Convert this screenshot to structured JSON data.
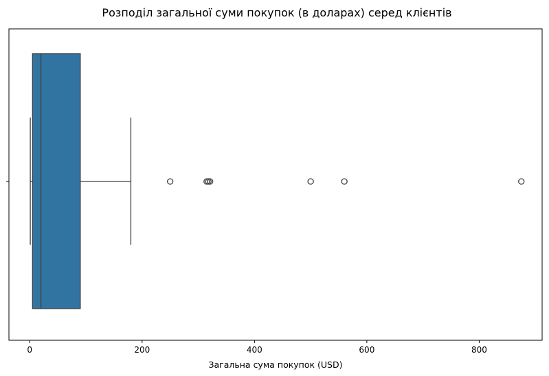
{
  "chart_data": {
    "type": "boxplot",
    "orientation": "horizontal",
    "title": "Розподіл загальної суми покупок (в доларах) серед клієнтів",
    "xlabel": "Загальна сума покупок (USD)",
    "ylabel": "",
    "xlim": [
      -37,
      912
    ],
    "xticks": [
      0,
      200,
      400,
      600,
      800
    ],
    "box": {
      "whisker_low": 1,
      "q1": 5,
      "median": 20,
      "q3": 90,
      "whisker_high": 180,
      "fliers": [
        250,
        315,
        318,
        321,
        500,
        560,
        875
      ]
    },
    "colors": {
      "box_fill": "#3274a1",
      "line": "#3f3f3f"
    },
    "grid": false
  }
}
